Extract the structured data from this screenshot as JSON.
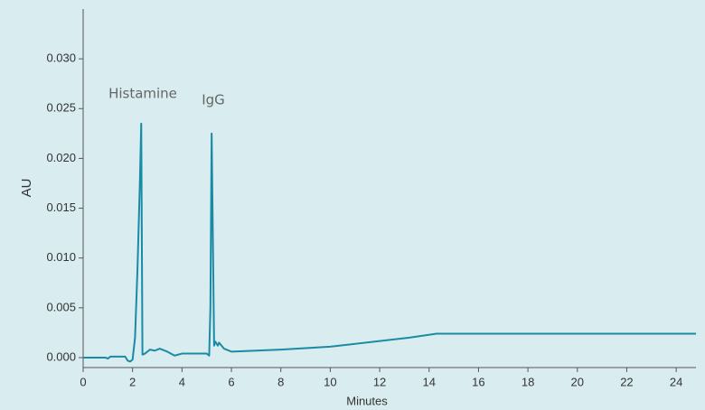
{
  "chart_data": {
    "type": "line",
    "x_label": "Minutes",
    "y_label": "AU",
    "annotations": [
      "Histamine",
      "IgG"
    ],
    "x": [
      0,
      0.9,
      1.0,
      1.1,
      1.7,
      1.8,
      1.9,
      2.0,
      2.1,
      2.2,
      2.3,
      2.35,
      2.4,
      2.5,
      2.7,
      2.9,
      3.1,
      3.4,
      3.7,
      4.0,
      5.0,
      5.1,
      5.15,
      5.2,
      5.3,
      5.35,
      5.45,
      5.5,
      5.7,
      6.0,
      8.0,
      10.0,
      13.2,
      14.3,
      24.8
    ],
    "series": [
      {
        "color": "#1a8ba5",
        "values": [
          0,
          0,
          -0.0001,
          0.0001,
          0.0001,
          -0.0003,
          -0.0004,
          -0.0002,
          0.002,
          0.009,
          0.018,
          0.0235,
          0.0003,
          0.0004,
          0.0008,
          0.0007,
          0.0009,
          0.0006,
          0.0002,
          0.0004,
          0.0004,
          0.0002,
          0.005,
          0.0225,
          0.0012,
          0.0016,
          0.0012,
          0.0015,
          0.0009,
          0.0006,
          0.0008,
          0.0011,
          0.002,
          0.0024,
          0.0024
        ]
      }
    ],
    "xlim": [
      0,
      24.8
    ],
    "ylim": [
      -0.001,
      0.035
    ],
    "xticks": [
      0,
      2,
      4,
      6,
      8,
      10,
      12,
      14,
      16,
      18,
      20,
      22,
      24
    ],
    "yticks": [
      {
        "value": 0,
        "label": "0.000"
      },
      {
        "value": 0.005,
        "label": "0.005"
      },
      {
        "value": 0.01,
        "label": "0.010"
      },
      {
        "value": 0.015,
        "label": "0.015"
      },
      {
        "value": 0.02,
        "label": "0.020"
      },
      {
        "value": 0.025,
        "label": "0.025"
      },
      {
        "value": 0.03,
        "label": "0.030"
      }
    ]
  }
}
